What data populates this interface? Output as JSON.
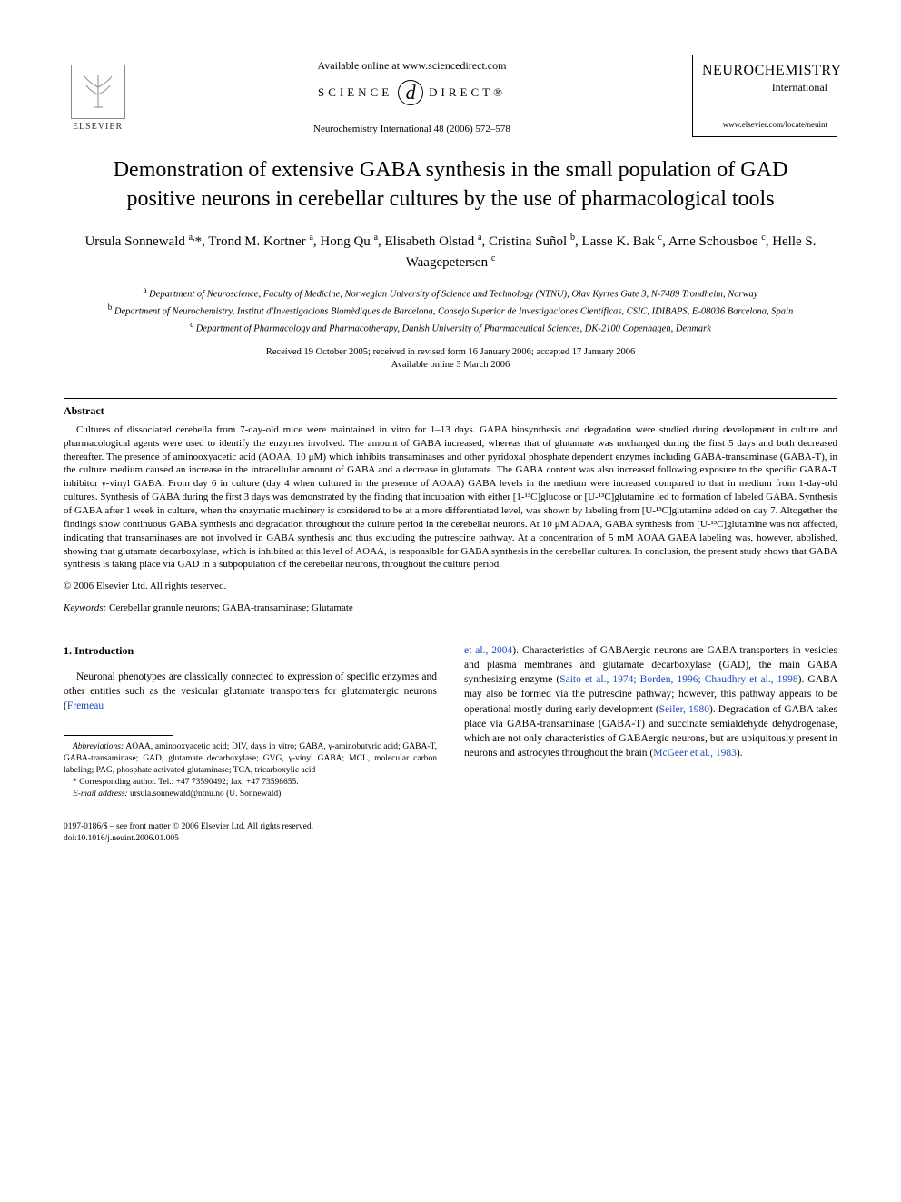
{
  "header": {
    "elsevier": "ELSEVIER",
    "available_online": "Available online at www.sciencedirect.com",
    "science_direct_left": "SCIENCE",
    "science_direct_right": "DIRECT®",
    "journal_ref": "Neurochemistry International 48 (2006) 572–578",
    "journal_name": "NEUROCHEMISTRY",
    "journal_sub": "International",
    "journal_url": "www.elsevier.com/locate/neuint"
  },
  "title": "Demonstration of extensive GABA synthesis in the small population of GAD positive neurons in cerebellar cultures by the use of pharmacological tools",
  "authors_html": "Ursula Sonnewald <sup>a,</sup>*, Trond M. Kortner <sup>a</sup>, Hong Qu <sup>a</sup>, Elisabeth Olstad <sup>a</sup>, Cristina Suñol <sup>b</sup>, Lasse K. Bak <sup>c</sup>, Arne Schousboe <sup>c</sup>, Helle S. Waagepetersen <sup>c</sup>",
  "affiliations": {
    "a": "Department of Neuroscience, Faculty of Medicine, Norwegian University of Science and Technology (NTNU), Olav Kyrres Gate 3, N-7489 Trondheim, Norway",
    "b": "Department of Neurochemistry, Institut d'Investigacions Biomèdiques de Barcelona, Consejo Superior de Investigaciones Científicas, CSIC, IDIBAPS, E-08036 Barcelona, Spain",
    "c": "Department of Pharmacology and Pharmacotherapy, Danish University of Pharmaceutical Sciences, DK-2100 Copenhagen, Denmark"
  },
  "dates": {
    "line1": "Received 19 October 2005; received in revised form 16 January 2006; accepted 17 January 2006",
    "line2": "Available online 3 March 2006"
  },
  "abstract": {
    "heading": "Abstract",
    "body": "Cultures of dissociated cerebella from 7-day-old mice were maintained in vitro for 1–13 days. GABA biosynthesis and degradation were studied during development in culture and pharmacological agents were used to identify the enzymes involved. The amount of GABA increased, whereas that of glutamate was unchanged during the first 5 days and both decreased thereafter. The presence of aminooxyacetic acid (AOAA, 10 μM) which inhibits transaminases and other pyridoxal phosphate dependent enzymes including GABA-transaminase (GABA-T), in the culture medium caused an increase in the intracellular amount of GABA and a decrease in glutamate. The GABA content was also increased following exposure to the specific GABA-T inhibitor γ-vinyl GABA. From day 6 in culture (day 4 when cultured in the presence of AOAA) GABA levels in the medium were increased compared to that in medium from 1-day-old cultures. Synthesis of GABA during the first 3 days was demonstrated by the finding that incubation with either [1-¹³C]glucose or [U-¹³C]glutamine led to formation of labeled GABA. Synthesis of GABA after 1 week in culture, when the enzymatic machinery is considered to be at a more differentiated level, was shown by labeling from [U-¹³C]glutamine added on day 7. Altogether the findings show continuous GABA synthesis and degradation throughout the culture period in the cerebellar neurons. At 10 μM AOAA, GABA synthesis from [U-¹³C]glutamine was not affected, indicating that transaminases are not involved in GABA synthesis and thus excluding the putrescine pathway. At a concentration of 5 mM AOAA GABA labeling was, however, abolished, showing that glutamate decarboxylase, which is inhibited at this level of AOAA, is responsible for GABA synthesis in the cerebellar cultures. In conclusion, the present study shows that GABA synthesis is taking place via GAD in a subpopulation of the cerebellar neurons, throughout the culture period.",
    "copyright": "© 2006 Elsevier Ltd. All rights reserved."
  },
  "keywords": {
    "label": "Keywords:",
    "text": " Cerebellar granule neurons; GABA-transaminase; Glutamate"
  },
  "intro": {
    "heading": "1. Introduction",
    "col1_p1_pre": "Neuronal phenotypes are classically connected to expression of specific enzymes and other entities such as the vesicular glutamate transporters for glutamatergic neurons (",
    "col1_p1_ref": "Fremeau",
    "col2_p1_ref1": "et al., 2004",
    "col2_p1_t1": "). Characteristics of GABAergic neurons are GABA transporters in vesicles and plasma membranes and glutamate decarboxylase (GAD), the main GABA synthesizing enzyme (",
    "col2_p1_ref2": "Saito et al., 1974; Borden, 1996; Chaudhry et al., 1998",
    "col2_p1_t2": "). GABA may also be formed via the putrescine pathway; however, this pathway appears to be operational mostly during early development (",
    "col2_p1_ref3": "Seiler, 1980",
    "col2_p1_t3": "). Degradation of GABA takes place via GABA-transaminase (GABA-T) and succinate semialdehyde dehydrogenase, which are not only characteristics of GABAergic neurons, but are ubiquitously present in neurons and astrocytes throughout the brain (",
    "col2_p1_ref4": "McGeer et al., 1983",
    "col2_p1_t4": ")."
  },
  "footnotes": {
    "abbrev_label": "Abbreviations:",
    "abbrev_text": " AOAA, aminooxyacetic acid; DIV, days in vitro; GABA, γ-aminobutyric acid; GABA-T, GABA-transaminase; GAD, glutamate decarboxylase; GVG, γ-vinyl GABA; MCL, molecular carbon labeling; PAG, phosphate activated glutaminase; TCA, tricarboxylic acid",
    "corresponding": "* Corresponding author. Tel.: +47 73590492; fax: +47 73598655.",
    "email_label": "E-mail address:",
    "email": " ursula.sonnewald@ntnu.no (U. Sonnewald)."
  },
  "bottom": {
    "issn": "0197-0186/$ – see front matter © 2006 Elsevier Ltd. All rights reserved.",
    "doi": "doi:10.1016/j.neuint.2006.01.005"
  }
}
